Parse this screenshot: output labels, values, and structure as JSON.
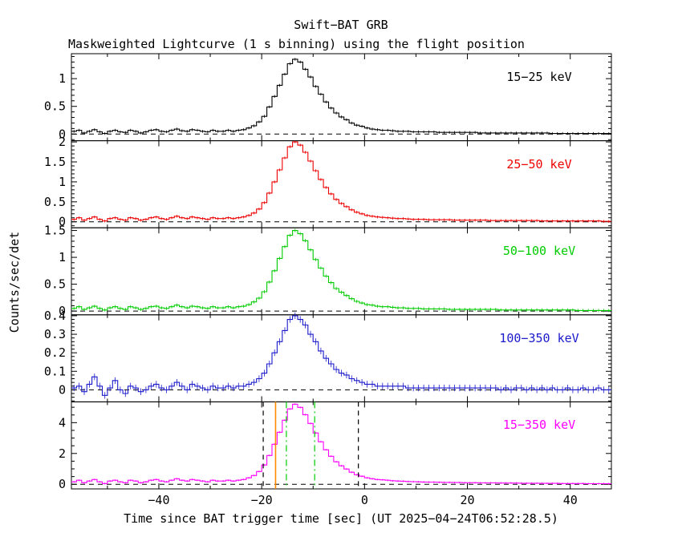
{
  "title": "Swift−BAT GRB",
  "subtitle": "Maskweighted Lightcurve (1 s binning) using the flight position",
  "xlabel": "Time since BAT trigger time [sec] (UT 2025−04−24T06:52:28.5)",
  "ylabel": "Counts/sec/det",
  "chart_data": {
    "type": "line",
    "line_style": "step-histogram (1 s binning) with small error bars",
    "title": "Swift−BAT GRB",
    "subtitle": "Maskweighted Lightcurve (1 s binning) using the flight position",
    "xlabel": "Time since BAT trigger time [sec] (UT 2025−04−24T06:52:28.5)",
    "ylabel": "Counts/sec/det",
    "grid": false,
    "legend_position": "labels inside each panel, upper right",
    "xlim": [
      -57,
      48
    ],
    "xticks": [
      -40,
      -20,
      0,
      20,
      40
    ],
    "xtick_minor_step": 10,
    "x": [
      -57,
      -56,
      -55,
      -54,
      -53,
      -52,
      -51,
      -50,
      -49,
      -48,
      -47,
      -46,
      -45,
      -44,
      -43,
      -42,
      -41,
      -40,
      -39,
      -38,
      -37,
      -36,
      -35,
      -34,
      -33,
      -32,
      -31,
      -30,
      -29,
      -28,
      -27,
      -26,
      -25,
      -24,
      -23,
      -22,
      -21,
      -20,
      -19,
      -18,
      -17,
      -16,
      -15,
      -14,
      -13,
      -12,
      -11,
      -10,
      -9,
      -8,
      -7,
      -6,
      -5,
      -4,
      -3,
      -2,
      -1,
      0,
      1,
      2,
      3,
      4,
      5,
      6,
      7,
      8,
      9,
      10,
      11,
      12,
      13,
      14,
      15,
      16,
      17,
      18,
      19,
      20,
      21,
      22,
      23,
      24,
      25,
      26,
      27,
      28,
      29,
      30,
      31,
      32,
      33,
      34,
      35,
      36,
      37,
      38,
      39,
      40,
      41,
      42,
      43,
      44,
      45,
      46,
      47
    ],
    "panels": [
      {
        "label": "15−25 keV",
        "color": "#000000",
        "ylim": [
          -0.12,
          1.45
        ],
        "yticks": [
          0,
          0.5,
          1
        ],
        "ytick_minor_step": 0.1,
        "zero_line": 0,
        "sigma": 0.025,
        "values": [
          0.05,
          0.07,
          0.02,
          0.05,
          0.08,
          0.04,
          0.01,
          0.05,
          0.07,
          0.04,
          0.03,
          0.07,
          0.05,
          0.02,
          0.04,
          0.07,
          0.08,
          0.05,
          0.04,
          0.07,
          0.09,
          0.06,
          0.05,
          0.08,
          0.07,
          0.05,
          0.04,
          0.07,
          0.05,
          0.05,
          0.07,
          0.05,
          0.07,
          0.08,
          0.11,
          0.15,
          0.22,
          0.32,
          0.49,
          0.68,
          0.88,
          1.08,
          1.27,
          1.35,
          1.3,
          1.17,
          1.03,
          0.86,
          0.72,
          0.58,
          0.47,
          0.38,
          0.31,
          0.26,
          0.2,
          0.16,
          0.14,
          0.11,
          0.09,
          0.08,
          0.07,
          0.07,
          0.06,
          0.05,
          0.05,
          0.05,
          0.04,
          0.04,
          0.04,
          0.04,
          0.04,
          0.03,
          0.03,
          0.03,
          0.03,
          0.03,
          0.03,
          0.03,
          0.03,
          0.02,
          0.02,
          0.02,
          0.02,
          0.02,
          0.02,
          0.02,
          0.02,
          0.02,
          0.02,
          0.02,
          0.02,
          0.02,
          0.02,
          0.01,
          0.01,
          0.01,
          0.01,
          0.01,
          0.01,
          0.01,
          0.01,
          0.01,
          0.01,
          0.01,
          0.01
        ]
      },
      {
        "label": "25−50 keV",
        "color": "#ee0000",
        "ylim": [
          -0.15,
          2.03
        ],
        "yticks": [
          0,
          0.5,
          1,
          1.5,
          2
        ],
        "ytick_minor_step": 0.1,
        "zero_line": 0,
        "sigma": 0.035,
        "values": [
          0.06,
          0.1,
          0.04,
          0.08,
          0.12,
          0.06,
          0.02,
          0.08,
          0.1,
          0.06,
          0.04,
          0.1,
          0.08,
          0.04,
          0.06,
          0.1,
          0.12,
          0.08,
          0.06,
          0.1,
          0.14,
          0.1,
          0.08,
          0.12,
          0.1,
          0.08,
          0.06,
          0.1,
          0.08,
          0.08,
          0.1,
          0.08,
          0.1,
          0.12,
          0.16,
          0.22,
          0.32,
          0.48,
          0.72,
          1.0,
          1.3,
          1.6,
          1.88,
          2.0,
          1.92,
          1.74,
          1.52,
          1.28,
          1.06,
          0.86,
          0.7,
          0.56,
          0.46,
          0.38,
          0.3,
          0.24,
          0.2,
          0.16,
          0.14,
          0.12,
          0.11,
          0.1,
          0.09,
          0.08,
          0.08,
          0.07,
          0.06,
          0.06,
          0.06,
          0.05,
          0.05,
          0.05,
          0.05,
          0.05,
          0.04,
          0.04,
          0.04,
          0.04,
          0.04,
          0.04,
          0.04,
          0.03,
          0.03,
          0.03,
          0.03,
          0.03,
          0.03,
          0.03,
          0.03,
          0.03,
          0.03,
          0.02,
          0.02,
          0.02,
          0.02,
          0.02,
          0.02,
          0.02,
          0.02,
          0.02,
          0.02,
          0.02,
          0.02,
          0.01,
          0.01
        ]
      },
      {
        "label": "50−100 keV",
        "color": "#00cc00",
        "ylim": [
          -0.07,
          1.55
        ],
        "yticks": [
          0,
          0.5,
          1,
          1.5
        ],
        "ytick_minor_step": 0.1,
        "zero_line": 0,
        "sigma": 0.03,
        "values": [
          0.05,
          0.08,
          0.03,
          0.06,
          0.09,
          0.05,
          0.02,
          0.06,
          0.08,
          0.05,
          0.03,
          0.08,
          0.06,
          0.03,
          0.05,
          0.08,
          0.09,
          0.06,
          0.05,
          0.08,
          0.11,
          0.08,
          0.06,
          0.09,
          0.08,
          0.06,
          0.05,
          0.08,
          0.06,
          0.06,
          0.08,
          0.06,
          0.08,
          0.09,
          0.12,
          0.17,
          0.24,
          0.36,
          0.54,
          0.75,
          0.98,
          1.2,
          1.41,
          1.5,
          1.44,
          1.31,
          1.14,
          0.96,
          0.8,
          0.65,
          0.53,
          0.42,
          0.35,
          0.29,
          0.23,
          0.18,
          0.15,
          0.12,
          0.11,
          0.09,
          0.08,
          0.08,
          0.07,
          0.06,
          0.06,
          0.05,
          0.05,
          0.05,
          0.04,
          0.04,
          0.04,
          0.04,
          0.04,
          0.03,
          0.03,
          0.03,
          0.03,
          0.03,
          0.03,
          0.03,
          0.03,
          0.03,
          0.03,
          0.02,
          0.02,
          0.02,
          0.02,
          0.02,
          0.02,
          0.02,
          0.02,
          0.02,
          0.02,
          0.02,
          0.02,
          0.02,
          0.02,
          0.02,
          0.01,
          0.01,
          0.01,
          0.01,
          0.01,
          0.01,
          0.01
        ]
      },
      {
        "label": "100−350 keV",
        "color": "#1a1acc",
        "ylim": [
          -0.065,
          0.405
        ],
        "yticks": [
          0,
          0.1,
          0.2,
          0.3,
          0.4
        ],
        "ytick_minor_step": 0.02,
        "zero_line": 0,
        "sigma": 0.018,
        "values": [
          0.01,
          0.02,
          -0.01,
          0.03,
          0.07,
          0.02,
          -0.03,
          0.01,
          0.05,
          0.0,
          -0.02,
          0.02,
          0.01,
          -0.01,
          0.0,
          0.02,
          0.03,
          0.01,
          0.0,
          0.02,
          0.04,
          0.02,
          0.0,
          0.03,
          0.02,
          0.01,
          0.0,
          0.02,
          0.01,
          0.01,
          0.02,
          0.01,
          0.02,
          0.02,
          0.03,
          0.04,
          0.06,
          0.09,
          0.14,
          0.2,
          0.26,
          0.32,
          0.38,
          0.4,
          0.38,
          0.35,
          0.3,
          0.26,
          0.21,
          0.17,
          0.14,
          0.11,
          0.09,
          0.08,
          0.06,
          0.05,
          0.04,
          0.03,
          0.03,
          0.02,
          0.02,
          0.02,
          0.02,
          0.02,
          0.02,
          0.01,
          0.01,
          0.01,
          0.01,
          0.01,
          0.01,
          0.01,
          0.01,
          0.01,
          0.01,
          0.01,
          0.01,
          0.01,
          0.01,
          0.01,
          0.01,
          0.01,
          0.01,
          0.0,
          0.01,
          0.0,
          0.01,
          0.01,
          0.0,
          0.01,
          0.0,
          0.01,
          0.0,
          0.01,
          0.0,
          0.0,
          0.01,
          0.0,
          0.0,
          0.01,
          0.0,
          0.0,
          0.01,
          0.0,
          0.0
        ]
      },
      {
        "label": "15−350 keV",
        "color": "#ff00ff",
        "ylim": [
          -0.3,
          5.35
        ],
        "yticks": [
          0,
          2,
          4
        ],
        "ytick_minor_step": 0.5,
        "zero_line": 0,
        "sigma": 0.06,
        "values": [
          0.16,
          0.26,
          0.1,
          0.21,
          0.31,
          0.16,
          0.05,
          0.21,
          0.26,
          0.16,
          0.1,
          0.26,
          0.21,
          0.1,
          0.16,
          0.26,
          0.31,
          0.21,
          0.16,
          0.26,
          0.36,
          0.26,
          0.21,
          0.31,
          0.26,
          0.21,
          0.16,
          0.26,
          0.21,
          0.21,
          0.26,
          0.21,
          0.26,
          0.31,
          0.42,
          0.57,
          0.83,
          1.25,
          1.87,
          2.6,
          3.38,
          4.16,
          4.89,
          5.2,
          4.99,
          4.52,
          3.95,
          3.33,
          2.76,
          2.24,
          1.82,
          1.46,
          1.2,
          0.99,
          0.78,
          0.62,
          0.52,
          0.42,
          0.36,
          0.31,
          0.29,
          0.26,
          0.23,
          0.21,
          0.2,
          0.18,
          0.17,
          0.16,
          0.15,
          0.14,
          0.14,
          0.13,
          0.12,
          0.12,
          0.11,
          0.11,
          0.1,
          0.1,
          0.1,
          0.09,
          0.09,
          0.09,
          0.09,
          0.08,
          0.08,
          0.08,
          0.08,
          0.07,
          0.07,
          0.07,
          0.07,
          0.06,
          0.06,
          0.06,
          0.06,
          0.05,
          0.05,
          0.05,
          0.05,
          0.05,
          0.04,
          0.04,
          0.04,
          0.04,
          0.04
        ]
      }
    ],
    "vlines_bottom_panel": [
      {
        "t": -19.7,
        "color": "#000000",
        "style": "dashed"
      },
      {
        "t": -17.3,
        "color": "#ff8800",
        "style": "solid"
      },
      {
        "t": -15.2,
        "color": "#00cc00",
        "style": "dashdot"
      },
      {
        "t": -9.7,
        "color": "#00cc00",
        "style": "dashdot"
      },
      {
        "t": -1.2,
        "color": "#000000",
        "style": "dashed"
      }
    ]
  }
}
